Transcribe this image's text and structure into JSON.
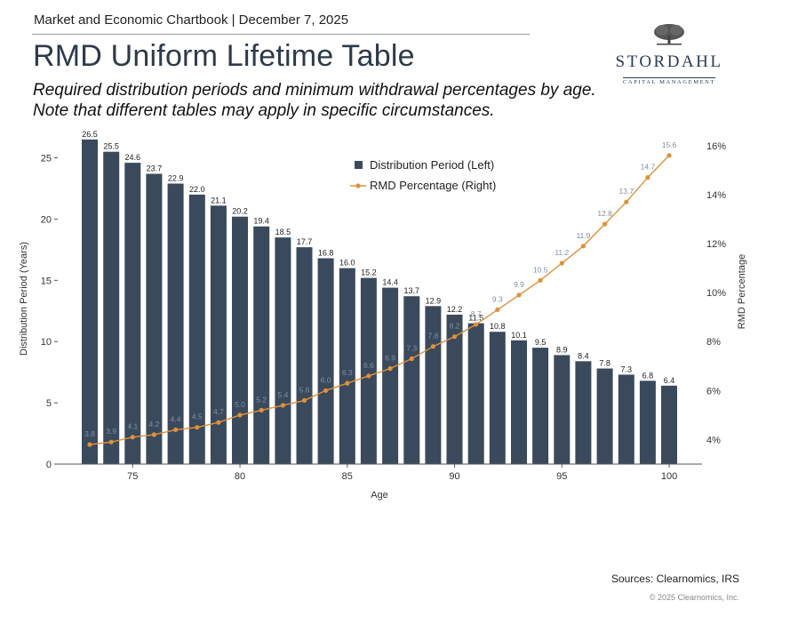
{
  "header": {
    "top_line": "Market and Economic Chartbook | December 7, 2025",
    "title": "RMD Uniform Lifetime Table",
    "subtitle_line1": "Required distribution periods and minimum withdrawal percentages by age.",
    "subtitle_line2": "Note that different tables may apply in specific circumstances."
  },
  "logo": {
    "name": "STORDAHL",
    "tagline": "CAPITAL MANAGEMENT",
    "icon": "tree-icon"
  },
  "footer": {
    "sources": "Sources: Clearnomics, IRS",
    "copyright": "© 2025 Clearnomics, Inc."
  },
  "colors": {
    "bar": "#3a4a5c",
    "line": "#e0903a",
    "title": "#2d3a4a"
  },
  "chart_data": {
    "type": "bar",
    "xlabel": "Age",
    "ylabel_left": "Distribution Period (Years)",
    "ylabel_right": "RMD Percentage",
    "x": [
      73,
      74,
      75,
      76,
      77,
      78,
      79,
      80,
      81,
      82,
      83,
      84,
      85,
      86,
      87,
      88,
      89,
      90,
      91,
      92,
      93,
      94,
      95,
      96,
      97,
      98,
      99,
      100
    ],
    "x_ticks": [
      "75",
      "80",
      "85",
      "90",
      "95",
      "100"
    ],
    "x_tick_values": [
      75,
      80,
      85,
      90,
      95,
      100
    ],
    "ylim_left": [
      0,
      27
    ],
    "y_ticks_left": [
      "0",
      "5",
      "10",
      "15",
      "20",
      "25"
    ],
    "ylim_right": [
      3.0,
      16.5
    ],
    "y_ticks_right": [
      "4%",
      "6%",
      "8%",
      "10%",
      "12%",
      "14%",
      "16%"
    ],
    "legend_position": "top-center",
    "series": [
      {
        "name": "Distribution Period (Left)",
        "type": "bar",
        "axis": "left",
        "values": [
          26.5,
          25.5,
          24.6,
          23.7,
          22.9,
          22.0,
          21.1,
          20.2,
          19.4,
          18.5,
          17.7,
          16.8,
          16.0,
          15.2,
          14.4,
          13.7,
          12.9,
          12.2,
          11.5,
          10.8,
          10.1,
          9.5,
          8.9,
          8.4,
          7.8,
          7.3,
          6.8,
          6.4
        ],
        "labels": [
          "26.5",
          "25.5",
          "24.6",
          "23.7",
          "22.9",
          "22.0",
          "21.1",
          "20.2",
          "19.4",
          "18.5",
          "17.7",
          "16.8",
          "16.0",
          "15.2",
          "14.4",
          "13.7",
          "12.9",
          "12.2",
          "11.5",
          "10.8",
          "10.1",
          "9.5",
          "8.9",
          "8.4",
          "7.8",
          "7.3",
          "6.8",
          "6.4"
        ]
      },
      {
        "name": "RMD Percentage (Right)",
        "type": "line",
        "axis": "right",
        "values": [
          3.8,
          3.9,
          4.1,
          4.2,
          4.4,
          4.5,
          4.7,
          5.0,
          5.2,
          5.4,
          5.6,
          6.0,
          6.3,
          6.6,
          6.9,
          7.3,
          7.8,
          8.2,
          8.7,
          9.3,
          9.9,
          10.5,
          11.2,
          11.9,
          12.8,
          13.7,
          14.7,
          15.6
        ],
        "labels": [
          "3.8",
          "3.9",
          "4.1",
          "4.2",
          "4.4",
          "4.5",
          "4.7",
          "5.0",
          "5.2",
          "5.4",
          "5.6",
          "6.0",
          "6.3",
          "6.6",
          "6.9",
          "7.3",
          "7.8",
          "8.2",
          "8.7",
          "9.3",
          "9.9",
          "10.5",
          "11.2",
          "11.9",
          "12.8",
          "13.7",
          "14.7",
          "15.6"
        ]
      }
    ]
  }
}
